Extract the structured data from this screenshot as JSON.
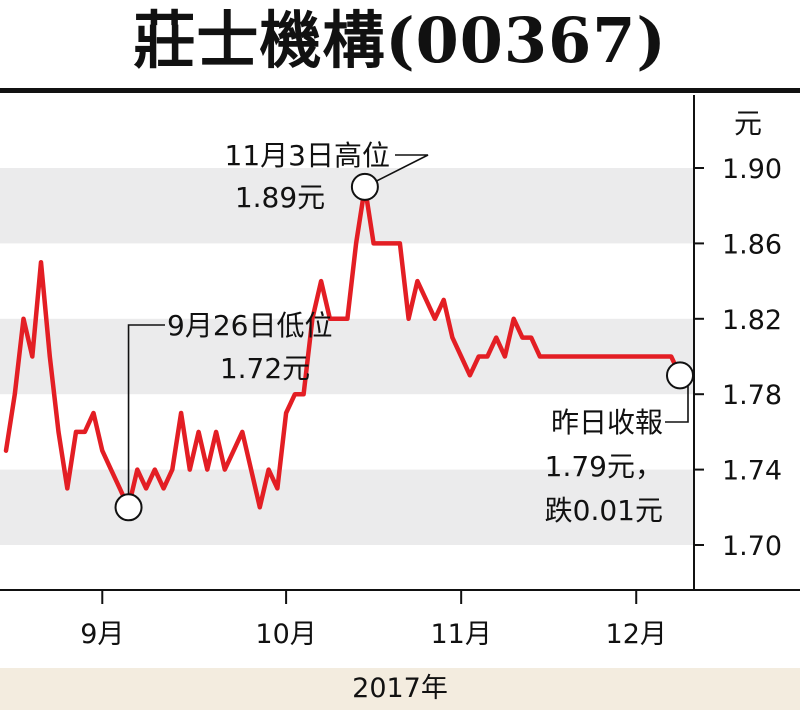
{
  "title": "莊士機構(00367)",
  "chart_data": {
    "type": "line",
    "unit": "元",
    "ylim": [
      1.69,
      1.915
    ],
    "yticks": [
      1.9,
      1.86,
      1.82,
      1.78,
      1.74,
      1.7
    ],
    "ytick_labels": [
      "1.90",
      "1.86",
      "1.82",
      "1.78",
      "1.74",
      "1.70"
    ],
    "xtick_labels": [
      "9月",
      "10月",
      "11月",
      "12月"
    ],
    "xtick_positions": [
      11,
      32,
      52,
      72
    ],
    "year_label": "2017年",
    "grid": "alternating horizontal bands",
    "series": [
      {
        "color": "#e31e24",
        "x": [
          0,
          1,
          2,
          3,
          4,
          5,
          6,
          7,
          8,
          9,
          10,
          11,
          12,
          13,
          14,
          15,
          16,
          17,
          18,
          19,
          20,
          21,
          22,
          23,
          24,
          25,
          26,
          27,
          28,
          29,
          30,
          31,
          32,
          33,
          34,
          35,
          36,
          37,
          38,
          39,
          40,
          41,
          42,
          43,
          44,
          45,
          46,
          47,
          48,
          49,
          50,
          51,
          52,
          53,
          54,
          55,
          56,
          57,
          58,
          59,
          60,
          61,
          62,
          63,
          64,
          65,
          66,
          67,
          68,
          69,
          70,
          71,
          72,
          73,
          74,
          75,
          76,
          77
        ],
        "y": [
          1.75,
          1.78,
          1.82,
          1.8,
          1.85,
          1.8,
          1.76,
          1.73,
          1.76,
          1.76,
          1.77,
          1.75,
          1.74,
          1.73,
          1.72,
          1.74,
          1.73,
          1.74,
          1.73,
          1.74,
          1.77,
          1.74,
          1.76,
          1.74,
          1.76,
          1.74,
          1.75,
          1.76,
          1.74,
          1.72,
          1.74,
          1.73,
          1.77,
          1.78,
          1.78,
          1.82,
          1.84,
          1.82,
          1.82,
          1.82,
          1.86,
          1.89,
          1.86,
          1.86,
          1.86,
          1.86,
          1.82,
          1.84,
          1.83,
          1.82,
          1.83,
          1.81,
          1.8,
          1.79,
          1.8,
          1.8,
          1.81,
          1.8,
          1.82,
          1.81,
          1.81,
          1.8,
          1.8,
          1.8,
          1.8,
          1.8,
          1.8,
          1.8,
          1.8,
          1.8,
          1.8,
          1.8,
          1.8,
          1.8,
          1.8,
          1.8,
          1.8,
          1.79
        ]
      }
    ],
    "annotations": [
      {
        "label": "11月3日高位",
        "value_label": "1.89元",
        "x": 41,
        "y": 1.89
      },
      {
        "label": "9月26日低位",
        "value_label": "1.72元",
        "x": 14,
        "y": 1.72
      },
      {
        "label": "昨日收報",
        "value_label": "1.79元，",
        "change_label": "跌0.01元",
        "x": 77,
        "y": 1.79
      }
    ]
  }
}
